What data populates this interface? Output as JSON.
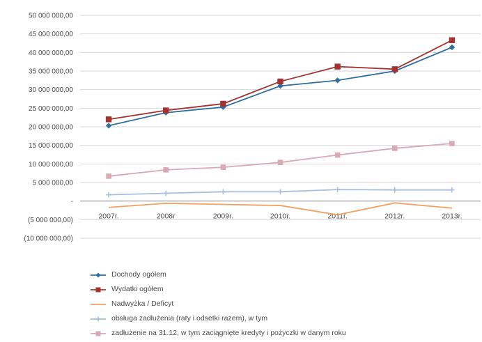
{
  "chart_data": {
    "type": "line",
    "categories": [
      "2007r.",
      "2008r",
      "2009r.",
      "2010r.",
      "2011r.",
      "2012r.",
      "2013r."
    ],
    "ylim": [
      -10000000,
      50000000
    ],
    "yticks": [
      50000000,
      45000000,
      40000000,
      35000000,
      30000000,
      25000000,
      20000000,
      15000000,
      10000000,
      5000000,
      0,
      -5000000,
      -10000000
    ],
    "ytick_labels": [
      "50 000 000,00",
      "45 000 000,00",
      "40 000 000,00",
      "35 000 000,00",
      "30 000 000,00",
      "25 000 000,00",
      "20 000 000,00",
      "15 000 000,00",
      "10 000 000,00",
      "5 000 000,00",
      "-",
      "(5 000 000,00)",
      "(10 000 000,00)"
    ],
    "grid": true,
    "legend_position": "bottom",
    "series": [
      {
        "name": "Dochody ogółem",
        "color": "#2e6f9e",
        "marker": "diamond",
        "values": [
          20300000,
          23800000,
          25300000,
          31000000,
          32500000,
          35000000,
          41400000
        ]
      },
      {
        "name": "Wydatki ogółem",
        "color": "#a33232",
        "marker": "square",
        "values": [
          22000000,
          24400000,
          26200000,
          32200000,
          36200000,
          35500000,
          43300000
        ]
      },
      {
        "name": "Nadwyżka / Deficyt",
        "color": "#f0a262",
        "marker": "none",
        "values": [
          -1700000,
          -600000,
          -900000,
          -1200000,
          -3700000,
          -500000,
          -1900000
        ]
      },
      {
        "name": "obsługa zadłużenia (raty i odsetki razem), w tym",
        "color": "#a7bfe0",
        "marker": "cross",
        "values": [
          1700000,
          2100000,
          2500000,
          2500000,
          3100000,
          3000000,
          3000000
        ]
      },
      {
        "name": "zadłużenie na 31.12, w tym zaciągnięte kredyty i pożyczki w danym roku",
        "color": "#d9a9b4",
        "marker": "square",
        "values": [
          6700000,
          8400000,
          9100000,
          10400000,
          12400000,
          14200000,
          15500000
        ]
      }
    ]
  }
}
